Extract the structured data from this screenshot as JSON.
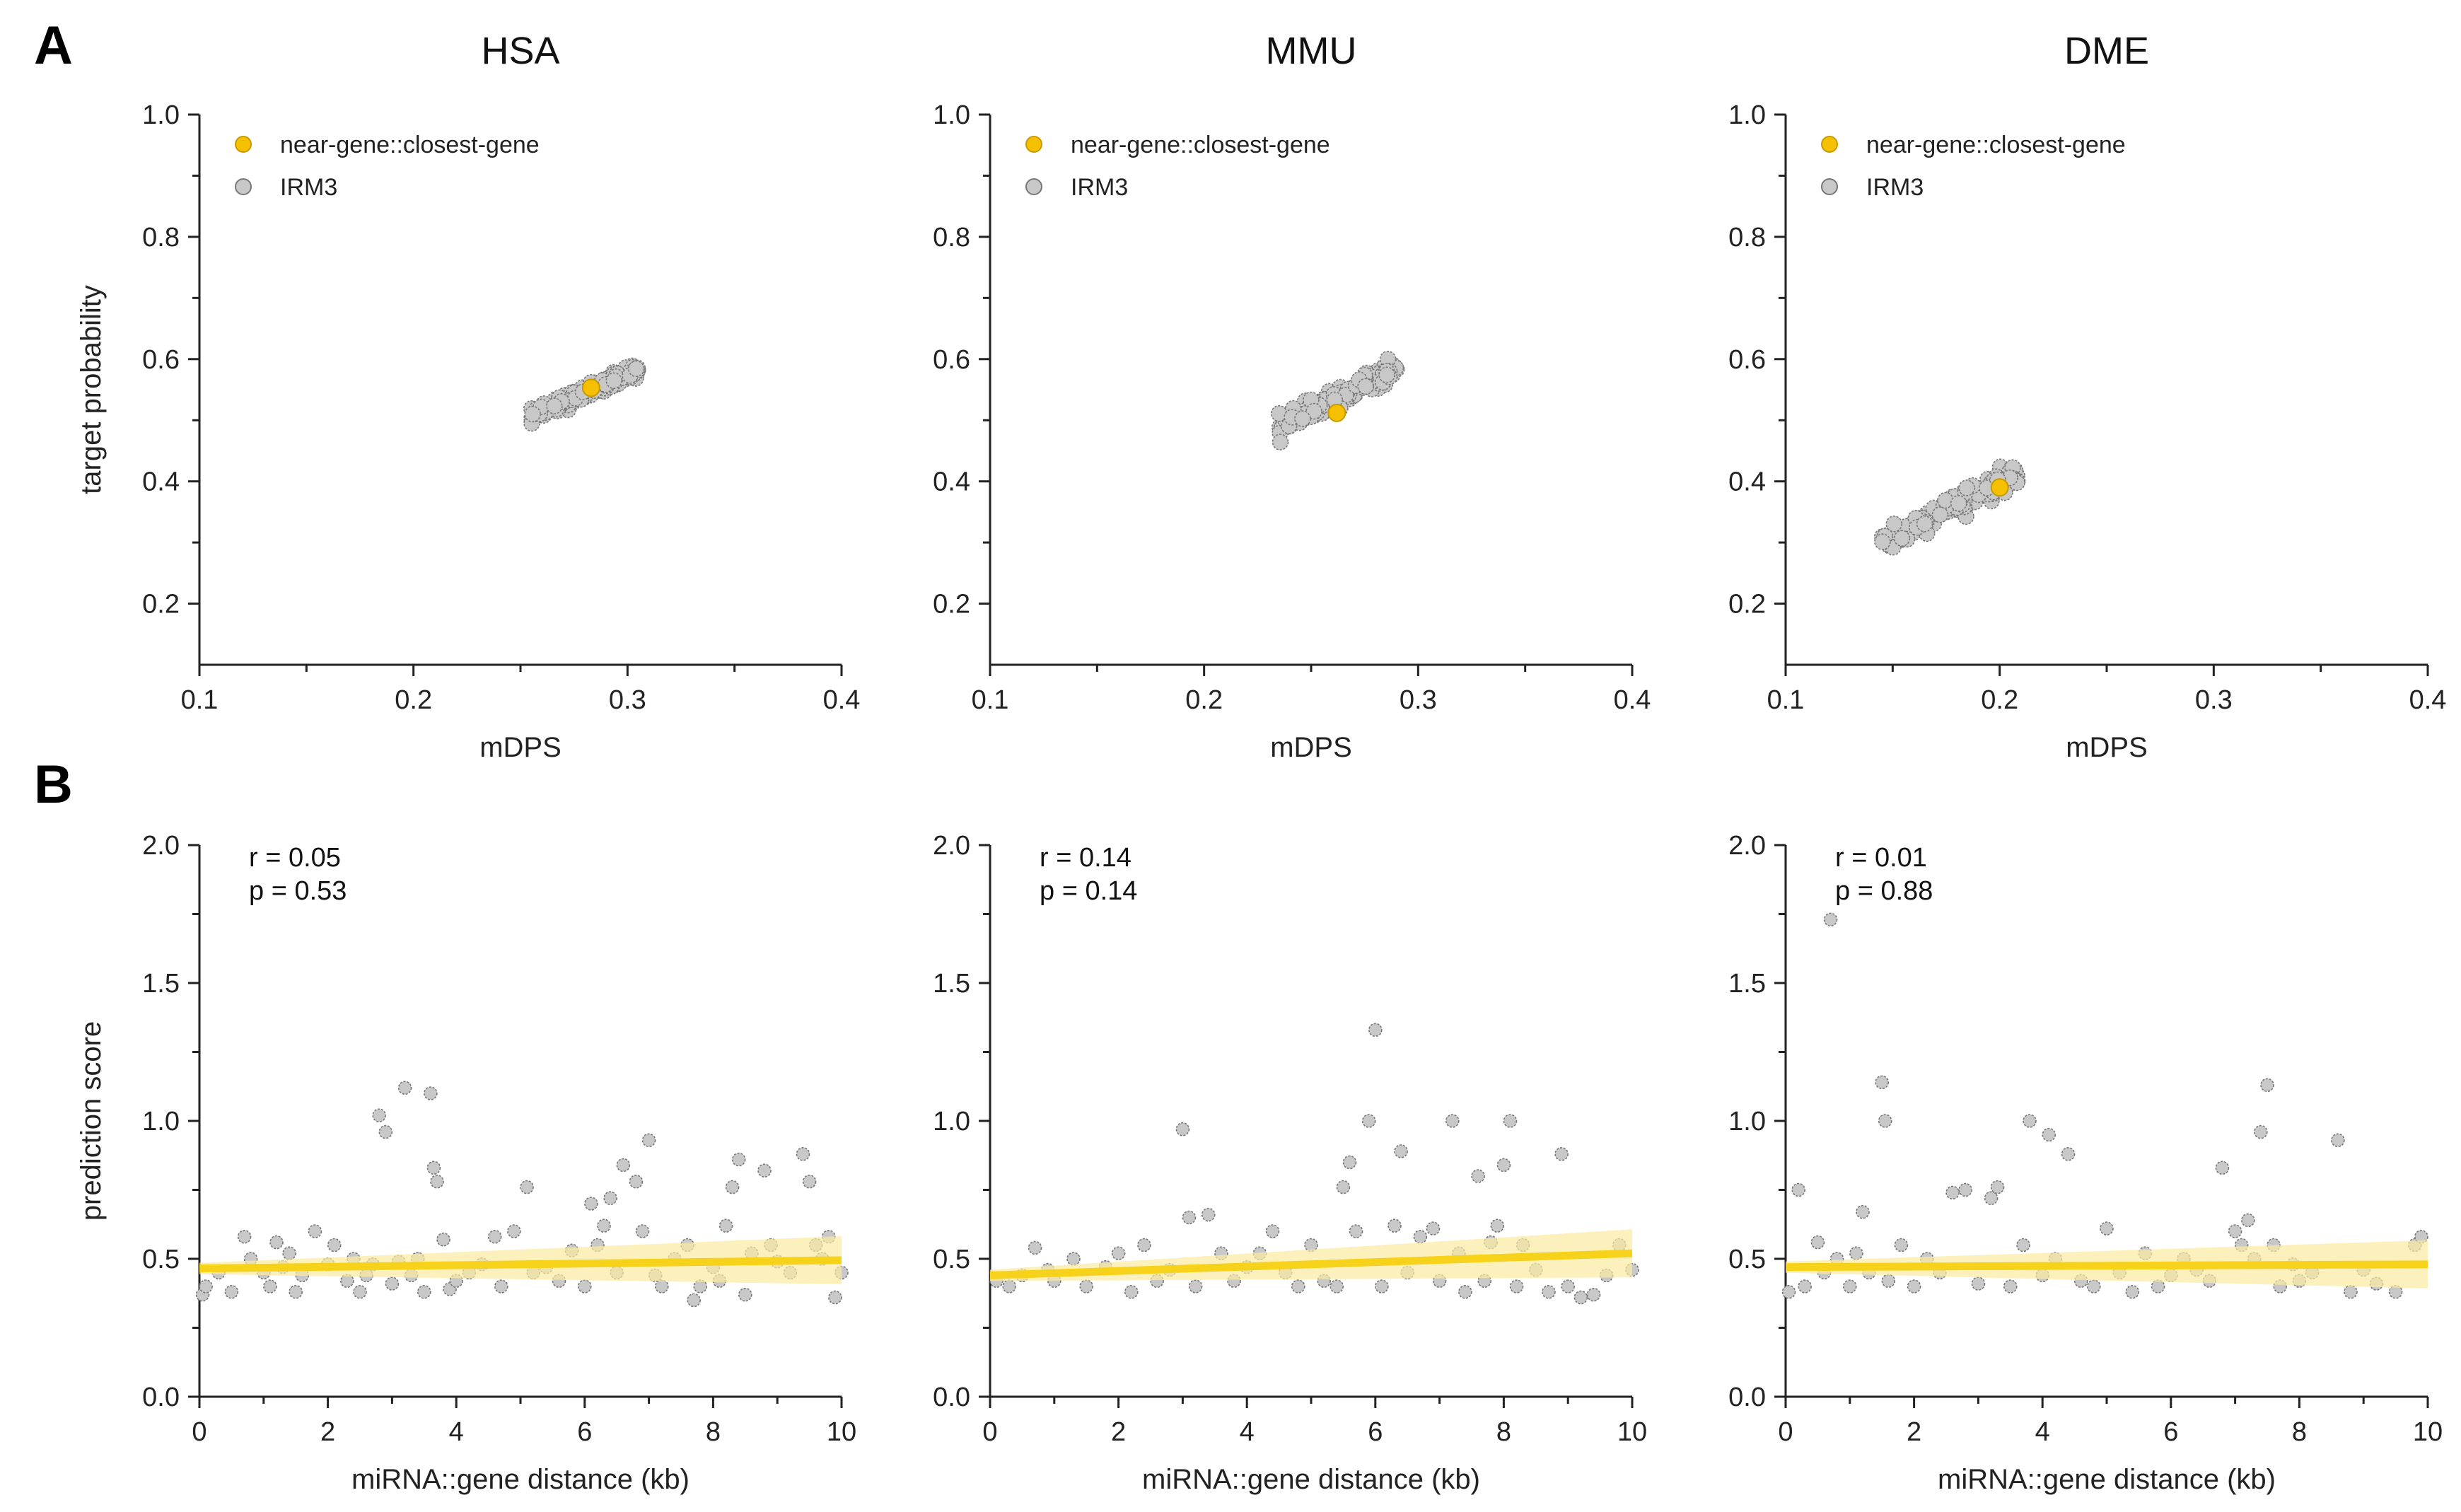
{
  "figure": {
    "panel_labels": [
      "A",
      "B"
    ],
    "species_titles": [
      "HSA",
      "MMU",
      "DME"
    ]
  },
  "colors": {
    "highlight": "#f5c000",
    "highlight_edge": "#c99a00",
    "points": "#c8c8c8",
    "points_edge": "#777777",
    "fit_line": "#f7d21a",
    "fit_band": "#fbeaa0"
  },
  "chart_data": [
    {
      "id": "A-HSA",
      "type": "scatter",
      "row": "A",
      "col": 0,
      "title": "HSA",
      "xlabel": "mDPS",
      "ylabel": "target probability",
      "xlim": [
        0.1,
        0.4
      ],
      "ylim": [
        0.1,
        1.0
      ],
      "xticks": [
        "0.1",
        "0.2",
        "0.3",
        "0.4"
      ],
      "yticks": [
        "0.2",
        "0.4",
        "0.6",
        "0.8",
        "1.0"
      ],
      "legend": [
        "near-gene::closest-gene",
        "IRM3"
      ],
      "cloud": {
        "x_range": [
          0.255,
          0.305
        ],
        "y_range": [
          0.505,
          0.585
        ],
        "n": 130
      },
      "highlight": {
        "x": 0.283,
        "y": 0.553
      }
    },
    {
      "id": "A-MMU",
      "type": "scatter",
      "row": "A",
      "col": 1,
      "title": "MMU",
      "xlabel": "mDPS",
      "ylabel": "",
      "xlim": [
        0.1,
        0.4
      ],
      "ylim": [
        0.1,
        1.0
      ],
      "xticks": [
        "0.1",
        "0.2",
        "0.3",
        "0.4"
      ],
      "yticks": [
        "0.2",
        "0.4",
        "0.6",
        "0.8",
        "1.0"
      ],
      "legend": [
        "near-gene::closest-gene",
        "IRM3"
      ],
      "cloud": {
        "x_range": [
          0.235,
          0.29
        ],
        "y_range": [
          0.49,
          0.585
        ],
        "n": 140
      },
      "highlight": {
        "x": 0.262,
        "y": 0.512
      }
    },
    {
      "id": "A-DME",
      "type": "scatter",
      "row": "A",
      "col": 2,
      "title": "DME",
      "xlabel": "mDPS",
      "ylabel": "",
      "xlim": [
        0.1,
        0.4
      ],
      "ylim": [
        0.1,
        1.0
      ],
      "xticks": [
        "0.1",
        "0.2",
        "0.3",
        "0.4"
      ],
      "yticks": [
        "0.2",
        "0.4",
        "0.6",
        "0.8",
        "1.0"
      ],
      "legend": [
        "near-gene::closest-gene",
        "IRM3"
      ],
      "cloud": {
        "x_range": [
          0.145,
          0.21
        ],
        "y_range": [
          0.3,
          0.415
        ],
        "n": 140
      },
      "highlight": {
        "x": 0.2,
        "y": 0.39
      }
    },
    {
      "id": "B-HSA",
      "type": "scatter",
      "row": "B",
      "col": 0,
      "xlabel": "miRNA::gene distance (kb)",
      "ylabel": "prediction score",
      "xlim": [
        0,
        10
      ],
      "ylim": [
        0,
        2.0
      ],
      "xticks": [
        "0",
        "2",
        "4",
        "6",
        "8",
        "10"
      ],
      "yticks": [
        "0.0",
        "0.5",
        "1.0",
        "1.5",
        "2.0"
      ],
      "stats": {
        "r": "r = 0.05",
        "p": "p = 0.53"
      },
      "fit": {
        "x": [
          0,
          10
        ],
        "y": [
          0.465,
          0.495
        ]
      },
      "points": [
        [
          0.05,
          0.37
        ],
        [
          0.1,
          0.4
        ],
        [
          0.3,
          0.45
        ],
        [
          0.5,
          0.38
        ],
        [
          0.7,
          0.58
        ],
        [
          0.8,
          0.5
        ],
        [
          1.0,
          0.45
        ],
        [
          1.1,
          0.4
        ],
        [
          1.2,
          0.56
        ],
        [
          1.3,
          0.47
        ],
        [
          1.4,
          0.52
        ],
        [
          1.5,
          0.38
        ],
        [
          1.6,
          0.44
        ],
        [
          1.8,
          0.6
        ],
        [
          2.0,
          0.48
        ],
        [
          2.1,
          0.55
        ],
        [
          2.3,
          0.42
        ],
        [
          2.4,
          0.5
        ],
        [
          2.5,
          0.38
        ],
        [
          2.6,
          0.44
        ],
        [
          2.7,
          0.48
        ],
        [
          2.8,
          1.02
        ],
        [
          2.9,
          0.96
        ],
        [
          3.0,
          0.41
        ],
        [
          3.1,
          0.49
        ],
        [
          3.2,
          1.12
        ],
        [
          3.3,
          0.44
        ],
        [
          3.4,
          0.5
        ],
        [
          3.5,
          0.38
        ],
        [
          3.6,
          1.1
        ],
        [
          3.65,
          0.83
        ],
        [
          3.7,
          0.78
        ],
        [
          3.8,
          0.57
        ],
        [
          3.9,
          0.39
        ],
        [
          4.0,
          0.42
        ],
        [
          4.2,
          0.45
        ],
        [
          4.4,
          0.48
        ],
        [
          4.6,
          0.58
        ],
        [
          4.7,
          0.4
        ],
        [
          4.9,
          0.6
        ],
        [
          5.1,
          0.76
        ],
        [
          5.2,
          0.45
        ],
        [
          5.4,
          0.47
        ],
        [
          5.6,
          0.42
        ],
        [
          5.8,
          0.53
        ],
        [
          6.0,
          0.4
        ],
        [
          6.1,
          0.7
        ],
        [
          6.2,
          0.55
        ],
        [
          6.3,
          0.62
        ],
        [
          6.4,
          0.72
        ],
        [
          6.5,
          0.45
        ],
        [
          6.6,
          0.84
        ],
        [
          6.8,
          0.78
        ],
        [
          6.9,
          0.6
        ],
        [
          7.0,
          0.93
        ],
        [
          7.1,
          0.44
        ],
        [
          7.2,
          0.4
        ],
        [
          7.4,
          0.5
        ],
        [
          7.6,
          0.55
        ],
        [
          7.7,
          0.35
        ],
        [
          7.8,
          0.4
        ],
        [
          8.0,
          0.47
        ],
        [
          8.1,
          0.42
        ],
        [
          8.2,
          0.62
        ],
        [
          8.3,
          0.76
        ],
        [
          8.4,
          0.86
        ],
        [
          8.5,
          0.37
        ],
        [
          8.6,
          0.52
        ],
        [
          8.8,
          0.82
        ],
        [
          8.9,
          0.55
        ],
        [
          9.0,
          0.49
        ],
        [
          9.2,
          0.45
        ],
        [
          9.4,
          0.88
        ],
        [
          9.5,
          0.78
        ],
        [
          9.6,
          0.55
        ],
        [
          9.7,
          0.5
        ],
        [
          9.8,
          0.58
        ],
        [
          9.9,
          0.36
        ],
        [
          10.0,
          0.45
        ]
      ]
    },
    {
      "id": "B-MMU",
      "type": "scatter",
      "row": "B",
      "col": 1,
      "xlabel": "miRNA::gene distance (kb)",
      "ylabel": "",
      "xlim": [
        0,
        10
      ],
      "ylim": [
        0,
        2.0
      ],
      "xticks": [
        "0",
        "2",
        "4",
        "6",
        "8",
        "10"
      ],
      "yticks": [
        "0.0",
        "0.5",
        "1.0",
        "1.5",
        "2.0"
      ],
      "stats": {
        "r": "r = 0.14",
        "p": "p = 0.14"
      },
      "fit": {
        "x": [
          0,
          10
        ],
        "y": [
          0.44,
          0.52
        ]
      },
      "points": [
        [
          0.1,
          0.42
        ],
        [
          0.3,
          0.4
        ],
        [
          0.5,
          0.44
        ],
        [
          0.7,
          0.54
        ],
        [
          0.9,
          0.46
        ],
        [
          1.0,
          0.42
        ],
        [
          1.3,
          0.5
        ],
        [
          1.5,
          0.4
        ],
        [
          1.8,
          0.47
        ],
        [
          2.0,
          0.52
        ],
        [
          2.2,
          0.38
        ],
        [
          2.4,
          0.55
        ],
        [
          2.6,
          0.42
        ],
        [
          2.8,
          0.46
        ],
        [
          3.0,
          0.97
        ],
        [
          3.1,
          0.65
        ],
        [
          3.2,
          0.4
        ],
        [
          3.4,
          0.66
        ],
        [
          3.6,
          0.52
        ],
        [
          3.8,
          0.42
        ],
        [
          4.0,
          0.47
        ],
        [
          4.2,
          0.52
        ],
        [
          4.4,
          0.6
        ],
        [
          4.6,
          0.45
        ],
        [
          4.8,
          0.4
        ],
        [
          5.0,
          0.55
        ],
        [
          5.2,
          0.42
        ],
        [
          5.4,
          0.4
        ],
        [
          5.5,
          0.76
        ],
        [
          5.6,
          0.85
        ],
        [
          5.7,
          0.6
        ],
        [
          5.9,
          1.0
        ],
        [
          6.0,
          1.33
        ],
        [
          6.1,
          0.4
        ],
        [
          6.3,
          0.62
        ],
        [
          6.4,
          0.89
        ],
        [
          6.5,
          0.45
        ],
        [
          6.7,
          0.58
        ],
        [
          6.9,
          0.61
        ],
        [
          7.0,
          0.42
        ],
        [
          7.2,
          1.0
        ],
        [
          7.3,
          0.52
        ],
        [
          7.4,
          0.38
        ],
        [
          7.6,
          0.8
        ],
        [
          7.7,
          0.42
        ],
        [
          7.8,
          0.56
        ],
        [
          7.9,
          0.62
        ],
        [
          8.0,
          0.84
        ],
        [
          8.1,
          1.0
        ],
        [
          8.2,
          0.4
        ],
        [
          8.3,
          0.55
        ],
        [
          8.5,
          0.46
        ],
        [
          8.7,
          0.38
        ],
        [
          8.9,
          0.88
        ],
        [
          9.0,
          0.4
        ],
        [
          9.2,
          0.36
        ],
        [
          9.4,
          0.37
        ],
        [
          9.6,
          0.44
        ],
        [
          9.8,
          0.55
        ],
        [
          10.0,
          0.46
        ]
      ]
    },
    {
      "id": "B-DME",
      "type": "scatter",
      "row": "B",
      "col": 2,
      "xlabel": "miRNA::gene distance (kb)",
      "ylabel": "",
      "xlim": [
        0,
        10
      ],
      "ylim": [
        0,
        2.0
      ],
      "xticks": [
        "0",
        "2",
        "4",
        "6",
        "8",
        "10"
      ],
      "yticks": [
        "0.0",
        "0.5",
        "1.0",
        "1.5",
        "2.0"
      ],
      "stats": {
        "r": "r = 0.01",
        "p": "p = 0.88"
      },
      "fit": {
        "x": [
          0,
          10
        ],
        "y": [
          0.47,
          0.48
        ]
      },
      "points": [
        [
          0.05,
          0.38
        ],
        [
          0.2,
          0.75
        ],
        [
          0.3,
          0.4
        ],
        [
          0.5,
          0.56
        ],
        [
          0.6,
          0.45
        ],
        [
          0.7,
          1.73
        ],
        [
          0.8,
          0.5
        ],
        [
          1.0,
          0.4
        ],
        [
          1.1,
          0.52
        ],
        [
          1.2,
          0.67
        ],
        [
          1.3,
          0.45
        ],
        [
          1.5,
          1.14
        ],
        [
          1.55,
          1.0
        ],
        [
          1.6,
          0.42
        ],
        [
          1.8,
          0.55
        ],
        [
          2.0,
          0.4
        ],
        [
          2.2,
          0.5
        ],
        [
          2.4,
          0.45
        ],
        [
          2.6,
          0.74
        ],
        [
          2.8,
          0.75
        ],
        [
          3.0,
          0.41
        ],
        [
          3.2,
          0.72
        ],
        [
          3.3,
          0.76
        ],
        [
          3.5,
          0.4
        ],
        [
          3.7,
          0.55
        ],
        [
          3.8,
          1.0
        ],
        [
          4.0,
          0.44
        ],
        [
          4.1,
          0.95
        ],
        [
          4.2,
          0.5
        ],
        [
          4.4,
          0.88
        ],
        [
          4.6,
          0.42
        ],
        [
          4.8,
          0.4
        ],
        [
          5.0,
          0.61
        ],
        [
          5.2,
          0.45
        ],
        [
          5.4,
          0.38
        ],
        [
          5.6,
          0.52
        ],
        [
          5.8,
          0.4
        ],
        [
          6.0,
          0.44
        ],
        [
          6.2,
          0.5
        ],
        [
          6.4,
          0.46
        ],
        [
          6.6,
          0.42
        ],
        [
          6.8,
          0.83
        ],
        [
          7.0,
          0.6
        ],
        [
          7.1,
          0.55
        ],
        [
          7.2,
          0.64
        ],
        [
          7.3,
          0.5
        ],
        [
          7.4,
          0.96
        ],
        [
          7.5,
          1.13
        ],
        [
          7.6,
          0.55
        ],
        [
          7.7,
          0.4
        ],
        [
          7.9,
          0.48
        ],
        [
          8.0,
          0.42
        ],
        [
          8.2,
          0.45
        ],
        [
          8.6,
          0.93
        ],
        [
          8.8,
          0.38
        ],
        [
          9.0,
          0.46
        ],
        [
          9.2,
          0.41
        ],
        [
          9.5,
          0.38
        ],
        [
          9.8,
          0.55
        ],
        [
          9.9,
          0.58
        ]
      ]
    }
  ]
}
